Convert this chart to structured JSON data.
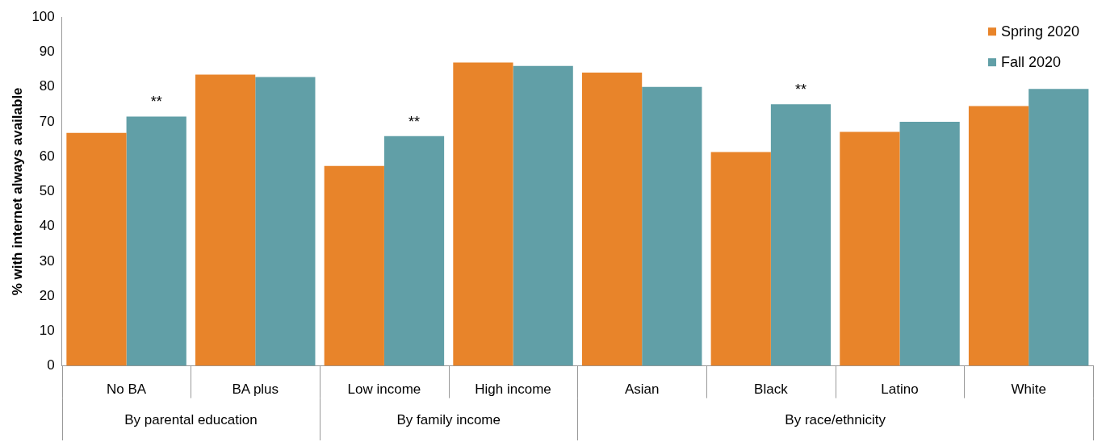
{
  "chart_data": {
    "type": "bar",
    "ylabel": "% with internet always available",
    "categories": [
      "No BA",
      "BA plus",
      "Low income",
      "High income",
      "Asian",
      "Black",
      "Latino",
      "White"
    ],
    "series": [
      {
        "name": "Spring 2020",
        "color": "#e8842a",
        "values": [
          66.8,
          83.5,
          57.3,
          87,
          84.1,
          61.3,
          67.1,
          74.5
        ]
      },
      {
        "name": "Fall 2020",
        "color": "#619fa7",
        "values": [
          71.5,
          82.8,
          65.9,
          86,
          80,
          75,
          70,
          79.4
        ]
      }
    ],
    "ylim": [
      0,
      100
    ],
    "yticks": [
      0,
      10,
      20,
      30,
      40,
      50,
      60,
      70,
      80,
      90,
      100
    ],
    "grid": false,
    "legend": "top right",
    "annotations": [
      {
        "text": "**",
        "x": "No BA",
        "y": 71.5
      },
      {
        "text": "**",
        "x": "Low income",
        "y": 65.9
      },
      {
        "text": "**",
        "x": "Black",
        "y": 75
      },
      "By parental education",
      "By family income",
      "By race/ethnicity"
    ]
  }
}
